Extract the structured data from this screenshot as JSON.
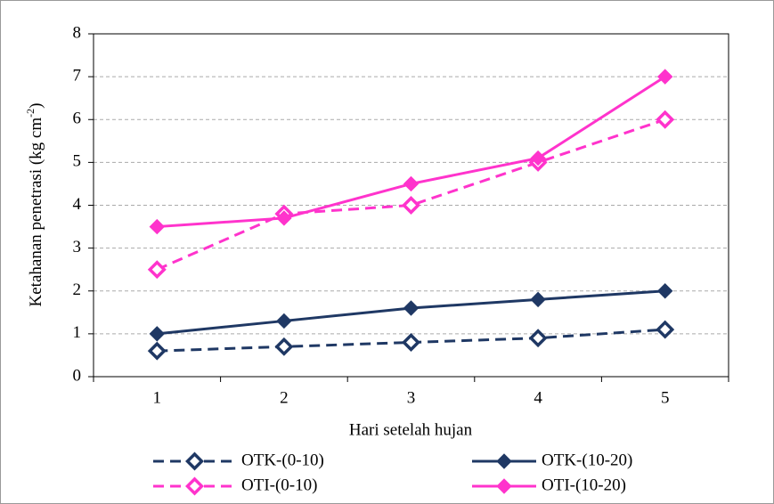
{
  "chart_data": {
    "type": "line",
    "ylabel": {
      "text": "Ketahanan penetrasi (kg cm",
      "sup": "-2",
      "end": ")"
    },
    "xlabel": "Hari setelah hujan",
    "categories": [
      "1",
      "2",
      "3",
      "4",
      "5"
    ],
    "ylim": [
      0,
      8
    ],
    "yticks": [
      0,
      1,
      2,
      3,
      4,
      5,
      6,
      7,
      8
    ],
    "grid": true,
    "legend": "bottom",
    "series": [
      {
        "name": "OTK-(0-10)",
        "color": "#1f3864",
        "style": "dashed",
        "marker": "hollow",
        "values": [
          0.6,
          0.7,
          0.8,
          0.9,
          1.1
        ]
      },
      {
        "name": "OTK-(10-20)",
        "color": "#1f3864",
        "style": "solid",
        "marker": "filled",
        "values": [
          1.0,
          1.3,
          1.6,
          1.8,
          2.0
        ]
      },
      {
        "name": "OTI-(0-10)",
        "color": "#ff33cc",
        "style": "dashed",
        "marker": "hollow",
        "values": [
          2.5,
          3.8,
          4.0,
          5.0,
          6.0
        ]
      },
      {
        "name": "OTI-(10-20)",
        "color": "#ff33cc",
        "style": "solid",
        "marker": "filled",
        "values": [
          3.5,
          3.7,
          4.5,
          5.1,
          7.0
        ]
      }
    ]
  }
}
